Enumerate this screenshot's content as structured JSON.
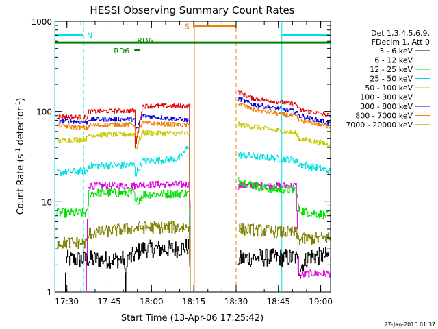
{
  "chart_data": {
    "type": "line",
    "title": "HESSI Observing Summary Count Rates",
    "xlabel": "Start Time (13-Apr-06 17:25:42)",
    "ylabel_main": "Count Rate (s",
    "ylabel_sup1": "-1",
    "ylabel_mid": " detector",
    "ylabel_sup2": "-1",
    "ylabel_end": ")",
    "yscale": "log",
    "ylim": [
      1,
      1000
    ],
    "xlim": [
      "17:25:42",
      "19:03:30"
    ],
    "x_ticks": [
      {
        "label": "17:30",
        "min": 4.3
      },
      {
        "label": "17:45",
        "min": 19.3
      },
      {
        "label": "18:00",
        "min": 34.3
      },
      {
        "label": "18:15",
        "min": 49.3
      },
      {
        "label": "18:30",
        "min": 64.3
      },
      {
        "label": "18:45",
        "min": 79.3
      },
      {
        "label": "19:00",
        "min": 94.3
      }
    ],
    "y_ticks": [
      {
        "label": "1",
        "value": 1
      },
      {
        "label": "10",
        "value": 10
      },
      {
        "label": "100",
        "value": 100
      },
      {
        "label": "1000",
        "value": 1000
      }
    ],
    "legend": {
      "header_lines": [
        "Det 1,3,4,5,6,9,",
        "FDecim 1, Att 0"
      ],
      "placement": "right",
      "entries": [
        {
          "label": "3 - 6 keV",
          "color": "#000000"
        },
        {
          "label": "6 - 12 keV",
          "color": "#e000e0"
        },
        {
          "label": "12 - 25 keV",
          "color": "#00e000"
        },
        {
          "label": "25 - 50 keV",
          "color": "#00e0e0"
        },
        {
          "label": "50 - 100 keV",
          "color": "#c8c800"
        },
        {
          "label": "100 - 300 keV",
          "color": "#e00000"
        },
        {
          "label": "300 - 800 keV",
          "color": "#0000e0"
        },
        {
          "label": "800 - 7000 keV",
          "color": "#f08000"
        },
        {
          "label": "7000 - 20000 keV",
          "color": "#808000"
        }
      ]
    },
    "flags": [
      {
        "label": "N",
        "color": "#00e0e0",
        "segments": [
          [
            0,
            10.2
          ],
          [
            80.5,
            97.9
          ]
        ],
        "level": 700
      },
      {
        "label": "S",
        "color": "#f08000",
        "segments": [
          [
            49.5,
            64.3
          ]
        ],
        "level": 880
      },
      {
        "label": "RD6",
        "color": "#008000",
        "segments": [
          [
            0,
            97.9
          ]
        ],
        "level": 580
      },
      {
        "label": "RD6",
        "color": "#008000",
        "segments": [
          [
            28.2,
            30.2
          ]
        ],
        "level": 480
      }
    ],
    "vertical_markers": [
      {
        "min": 0.0,
        "color": "#00e0e0",
        "style": "solid"
      },
      {
        "min": 10.2,
        "color": "#00e0e0",
        "style": "dashed"
      },
      {
        "min": 49.5,
        "color": "#f08000",
        "style": "solid"
      },
      {
        "min": 64.3,
        "color": "#f08000",
        "style": "dashed"
      },
      {
        "min": 80.5,
        "color": "#00e0e0",
        "style": "solid"
      },
      {
        "min": 97.9,
        "color": "#00e0e0",
        "style": "dashed"
      }
    ],
    "series": [
      {
        "name": "3 - 6 keV",
        "color": "#000000",
        "noise": 0.1,
        "segments": [
          [
            [
              0.0,
              1.0
            ],
            [
              3.5,
              1.0
            ],
            [
              4.0,
              2.3
            ],
            [
              6.5,
              2.3
            ],
            [
              7.0,
              2.3
            ],
            [
              24.5,
              2.3
            ],
            [
              25.0,
              1.0
            ],
            [
              25.5,
              2.4
            ],
            [
              27.0,
              2.4
            ],
            [
              31.0,
              3.0
            ],
            [
              43.0,
              3.0
            ],
            [
              47.5,
              3.2
            ],
            [
              48.0,
              1.0
            ]
          ],
          [
            [
              65.0,
              2.3
            ],
            [
              70.0,
              2.4
            ],
            [
              85.5,
              2.4
            ],
            [
              86.5,
              1.8
            ],
            [
              90.0,
              2.5
            ],
            [
              97.5,
              2.5
            ]
          ]
        ]
      },
      {
        "name": "6 - 12 keV",
        "color": "#e000e0",
        "noise": 0.04,
        "segments": [
          [
            [
              11.0,
              1.0
            ],
            [
              11.8,
              15.0
            ],
            [
              28.5,
              15.0
            ],
            [
              29.0,
              15.5
            ],
            [
              47.5,
              15.5
            ],
            [
              48.0,
              1.0
            ]
          ],
          [
            [
              65.0,
              15.0
            ],
            [
              85.5,
              15.0
            ],
            [
              86.5,
              1.5
            ],
            [
              90.0,
              1.6
            ],
            [
              97.5,
              1.6
            ]
          ]
        ]
      },
      {
        "name": "12 - 25 keV",
        "color": "#00e000",
        "noise": 0.05,
        "segments": [
          [
            [
              0.5,
              7.5
            ],
            [
              11.5,
              7.5
            ],
            [
              12.0,
              12.5
            ],
            [
              28.2,
              12.5
            ],
            [
              28.4,
              9.5
            ],
            [
              31.0,
              12.0
            ],
            [
              47.5,
              12.5
            ],
            [
              48.0,
              1.0
            ]
          ],
          [
            [
              65.0,
              17.0
            ],
            [
              75.0,
              14.0
            ],
            [
              85.5,
              13.5
            ],
            [
              86.5,
              8.0
            ],
            [
              97.5,
              7.0
            ]
          ]
        ]
      },
      {
        "name": "25 - 50 keV",
        "color": "#00e0e0",
        "noise": 0.04,
        "segments": [
          [
            [
              1.0,
              21.0
            ],
            [
              11.5,
              22.0
            ],
            [
              12.0,
              25.0
            ],
            [
              28.2,
              25.5
            ],
            [
              28.5,
              20.0
            ],
            [
              31.0,
              28.0
            ],
            [
              44.0,
              30.0
            ],
            [
              47.5,
              42.0
            ],
            [
              48.0,
              1.0
            ]
          ],
          [
            [
              65.0,
              33.0
            ],
            [
              85.5,
              29.0
            ],
            [
              86.5,
              26.0
            ],
            [
              97.5,
              22.0
            ]
          ]
        ]
      },
      {
        "name": "50 - 100 keV",
        "color": "#c8c800",
        "noise": 0.03,
        "segments": [
          [
            [
              1.0,
              47.0
            ],
            [
              11.5,
              50.0
            ],
            [
              12.0,
              55.0
            ],
            [
              28.2,
              56.0
            ],
            [
              28.5,
              38.0
            ],
            [
              31.0,
              58.0
            ],
            [
              47.5,
              57.0
            ],
            [
              48.0,
              1.0
            ]
          ],
          [
            [
              65.0,
              72.0
            ],
            [
              85.5,
              57.0
            ],
            [
              86.5,
              50.0
            ],
            [
              97.5,
              43.0
            ]
          ]
        ]
      },
      {
        "name": "100 - 300 keV",
        "color": "#e00000",
        "noise": 0.025,
        "segments": [
          [
            [
              1.0,
              88.0
            ],
            [
              11.5,
              86.0
            ],
            [
              12.0,
              100.0
            ],
            [
              28.2,
              102.0
            ],
            [
              28.5,
              40.0
            ],
            [
              31.0,
              115.0
            ],
            [
              47.5,
              115.0
            ],
            [
              48.0,
              1.0
            ]
          ],
          [
            [
              65.0,
              165.0
            ],
            [
              70.0,
              140.0
            ],
            [
              85.5,
              120.0
            ],
            [
              86.5,
              105.0
            ],
            [
              97.5,
              90.0
            ]
          ]
        ]
      },
      {
        "name": "300 - 800 keV",
        "color": "#0000e0",
        "noise": 0.025,
        "segments": [
          [
            [
              1.0,
              80.0
            ],
            [
              11.5,
              76.0
            ],
            [
              12.0,
              82.0
            ],
            [
              28.2,
              82.0
            ],
            [
              28.5,
              60.0
            ],
            [
              31.0,
              90.0
            ],
            [
              47.5,
              80.0
            ],
            [
              48.0,
              1.0
            ]
          ],
          [
            [
              65.0,
              140.0
            ],
            [
              70.0,
              120.0
            ],
            [
              85.5,
              100.0
            ],
            [
              86.5,
              90.0
            ],
            [
              97.5,
              74.0
            ]
          ]
        ]
      },
      {
        "name": "800 - 7000 keV",
        "color": "#f08000",
        "noise": 0.025,
        "segments": [
          [
            [
              1.0,
              70.0
            ],
            [
              11.5,
              65.0
            ],
            [
              12.0,
              70.0
            ],
            [
              28.2,
              72.0
            ],
            [
              28.5,
              52.0
            ],
            [
              31.0,
              75.0
            ],
            [
              47.5,
              70.0
            ],
            [
              48.0,
              1.0
            ]
          ],
          [
            [
              65.0,
              125.0
            ],
            [
              70.0,
              105.0
            ],
            [
              85.5,
              88.0
            ],
            [
              86.5,
              80.0
            ],
            [
              97.5,
              68.0
            ]
          ]
        ]
      },
      {
        "name": "7000 - 20000 keV",
        "color": "#808000",
        "noise": 0.07,
        "segments": [
          [
            [
              1.0,
              3.5
            ],
            [
              11.5,
              3.5
            ],
            [
              12.0,
              4.5
            ],
            [
              31.0,
              5.2
            ],
            [
              47.5,
              5.2
            ],
            [
              48.0,
              1.0
            ]
          ],
          [
            [
              65.0,
              5.0
            ],
            [
              85.5,
              4.5
            ],
            [
              86.5,
              3.8
            ],
            [
              97.5,
              4.0
            ]
          ]
        ]
      }
    ],
    "footer_date": "27-Jan-2010 01:37"
  }
}
